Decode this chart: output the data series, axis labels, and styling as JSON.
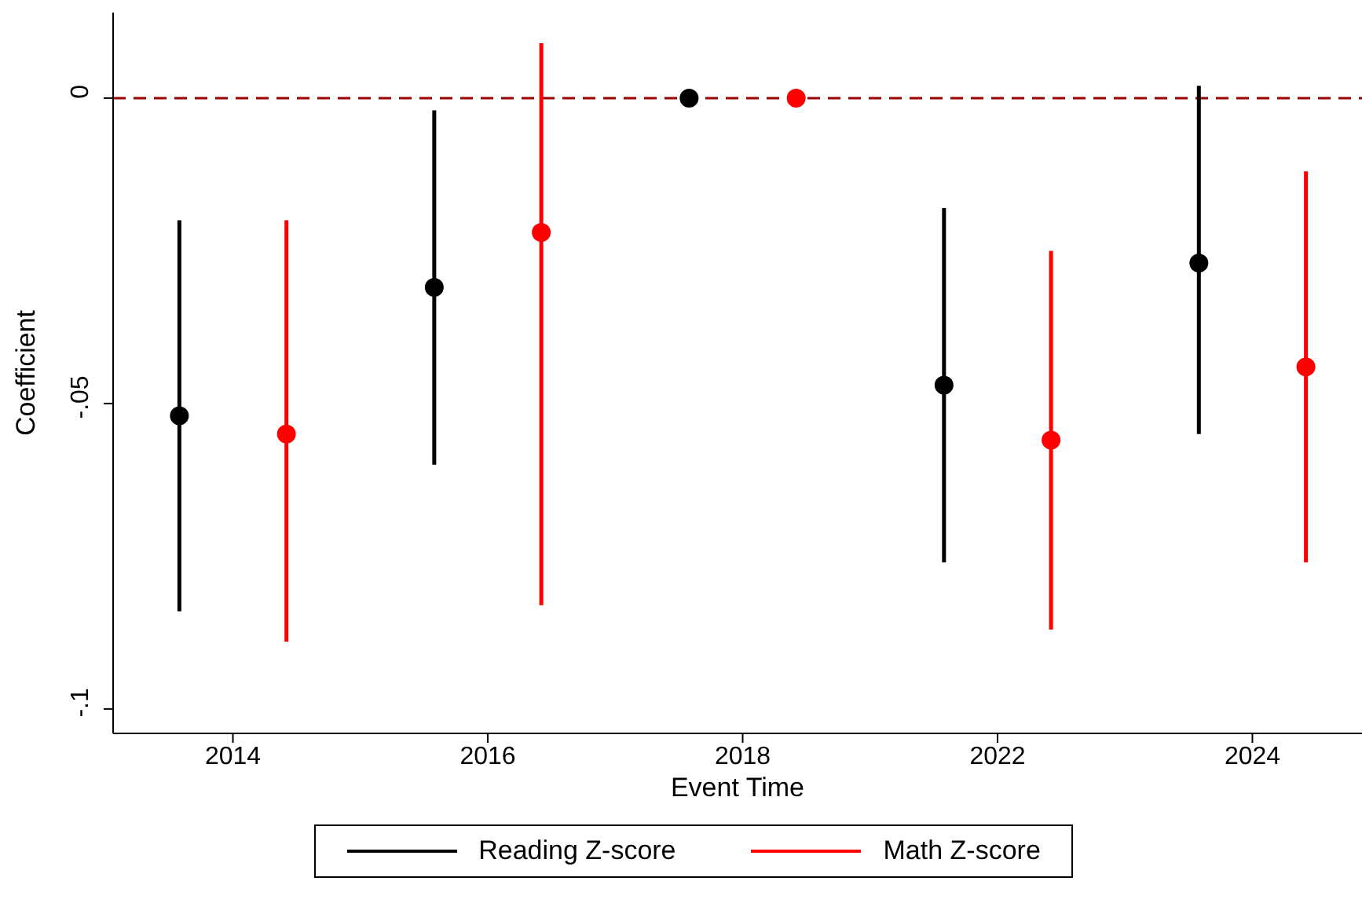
{
  "chart_data": {
    "type": "scatter",
    "xlabel": "Event Time",
    "ylabel": "Coefficient",
    "categories": [
      "2014",
      "2016",
      "2018",
      "2022",
      "2024"
    ],
    "series": [
      {
        "name": "Reading Z-score",
        "color": "#000000",
        "values": [
          -0.052,
          -0.031,
          0,
          -0.047,
          -0.027
        ],
        "errors": [
          [
            -0.084,
            -0.02
          ],
          [
            -0.06,
            -0.002
          ],
          null,
          [
            -0.076,
            -0.018
          ],
          [
            -0.055,
            0.002
          ]
        ]
      },
      {
        "name": "Math Z-score",
        "color": "#ff0000",
        "values": [
          -0.055,
          -0.022,
          0,
          -0.056,
          -0.044
        ],
        "errors": [
          [
            -0.089,
            -0.02
          ],
          [
            -0.083,
            0.009
          ],
          null,
          [
            -0.087,
            -0.025
          ],
          [
            -0.076,
            -0.012
          ]
        ]
      }
    ],
    "ylim": [
      -0.104,
      0.014
    ],
    "yticks": [
      {
        "value": 0,
        "label": "0"
      },
      {
        "value": -0.05,
        "label": "-.05"
      },
      {
        "value": -0.1,
        "label": "-.1"
      }
    ],
    "ref_lines": [
      {
        "axis": "y",
        "value": 0,
        "color": "#990000",
        "line_style": "dashed"
      }
    ],
    "marker": "circle",
    "legend": "bottom"
  }
}
